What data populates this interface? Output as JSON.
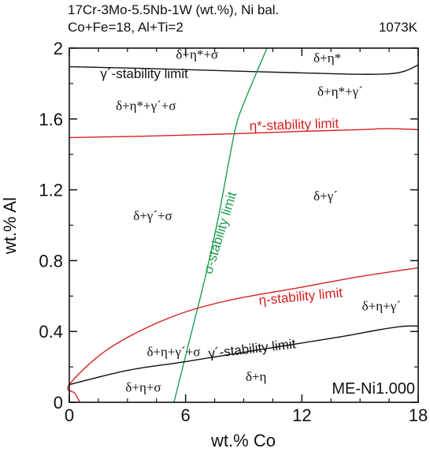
{
  "header": {
    "line1": "17Cr-3Mo-5.5Nb-1W (wt.%), Ni bal.",
    "line2": "Co+Fe=18, Al+Ti=2",
    "temperature": "1073K"
  },
  "watermark": "ME-Ni1.000",
  "colors": {
    "black": "#111111",
    "red": "#d81e1e",
    "green": "#1f9e4a"
  },
  "chart_data": {
    "type": "line",
    "xlabel": "wt.% Co",
    "ylabel": "wt.% Al",
    "xlim": [
      0,
      18
    ],
    "ylim": [
      0,
      2
    ],
    "xticks": [
      "0",
      "6",
      "12",
      "18"
    ],
    "yticks": [
      "0",
      "0.4",
      "0.8",
      "1.2",
      "1.6",
      "2"
    ],
    "grid": false,
    "series": [
      {
        "key": "gp_upper",
        "color": "black",
        "points": [
          [
            0,
            1.895
          ],
          [
            4,
            1.885
          ],
          [
            8,
            1.872
          ],
          [
            12,
            1.86
          ],
          [
            15,
            1.852
          ],
          [
            16.5,
            1.855
          ],
          [
            17.3,
            1.87
          ],
          [
            18,
            1.905
          ]
        ]
      },
      {
        "key": "eta_star",
        "color": "red",
        "points": [
          [
            0,
            1.495
          ],
          [
            4,
            1.503
          ],
          [
            8,
            1.515
          ],
          [
            12,
            1.53
          ],
          [
            15,
            1.54
          ],
          [
            16.5,
            1.545
          ],
          [
            18,
            1.54
          ]
        ]
      },
      {
        "key": "sigma",
        "color": "green",
        "points": [
          [
            5.4,
            0
          ],
          [
            6.2,
            0.35
          ],
          [
            7.0,
            0.7
          ],
          [
            7.7,
            1.05
          ],
          [
            8.3,
            1.4
          ],
          [
            8.7,
            1.6
          ],
          [
            9.5,
            1.82
          ],
          [
            10.2,
            2.0
          ]
        ]
      },
      {
        "key": "eta",
        "color": "red",
        "points": [
          [
            0.55,
            0
          ],
          [
            0.3,
            0.05
          ],
          [
            0,
            0.1
          ],
          [
            2,
            0.3
          ],
          [
            5,
            0.47
          ],
          [
            8,
            0.57
          ],
          [
            12,
            0.65
          ],
          [
            15,
            0.71
          ],
          [
            18,
            0.76
          ]
        ]
      },
      {
        "key": "gp_lower",
        "color": "black",
        "points": [
          [
            0,
            0.1
          ],
          [
            3,
            0.18
          ],
          [
            6,
            0.23
          ],
          [
            10,
            0.3
          ],
          [
            14,
            0.37
          ],
          [
            16,
            0.41
          ],
          [
            17.3,
            0.43
          ],
          [
            18,
            0.43
          ]
        ]
      }
    ],
    "curve_labels": [
      {
        "key": "gp_upper_label",
        "text": "γ´-stability limit",
        "color": "black",
        "x": 1.6,
        "y": 1.83,
        "rotate": 0
      },
      {
        "key": "eta_star_label",
        "text": "η*-stability limit",
        "color": "red",
        "x": 9.3,
        "y": 1.535,
        "rotate": -1.8
      },
      {
        "key": "sigma_label",
        "text": "σ-stability limit",
        "color": "green",
        "x": 7.35,
        "y": 0.72,
        "rotate": -73
      },
      {
        "key": "eta_label",
        "text": "η-stability limit",
        "color": "red",
        "x": 9.8,
        "y": 0.55,
        "rotate": -5.5
      },
      {
        "key": "gp_lower_label",
        "text": "γ´-stability limit",
        "color": "black",
        "x": 7.2,
        "y": 0.25,
        "rotate": -6.5
      }
    ],
    "regions": [
      {
        "key": "r1",
        "text": "δ+η*+σ",
        "x": 5.5,
        "y": 1.94
      },
      {
        "key": "r2",
        "text": "δ+η*",
        "x": 12.6,
        "y": 1.92
      },
      {
        "key": "r3",
        "text": "δ+η*+γ´",
        "x": 12.8,
        "y": 1.73
      },
      {
        "key": "r4",
        "text": "δ+η*+γ´+σ",
        "x": 2.4,
        "y": 1.65
      },
      {
        "key": "r5",
        "text": "δ+γ´",
        "x": 12.6,
        "y": 1.14
      },
      {
        "key": "r6",
        "text": "δ+γ´+σ",
        "x": 3.3,
        "y": 1.03
      },
      {
        "key": "r7",
        "text": "δ+η+γ´",
        "x": 15.1,
        "y": 0.52
      },
      {
        "key": "r8",
        "text": "δ+η+γ´+σ",
        "x": 4.0,
        "y": 0.26
      },
      {
        "key": "r9",
        "text": "δ+η+σ",
        "x": 2.9,
        "y": 0.06
      },
      {
        "key": "r10",
        "text": "δ+η",
        "x": 9.1,
        "y": 0.12
      }
    ]
  }
}
